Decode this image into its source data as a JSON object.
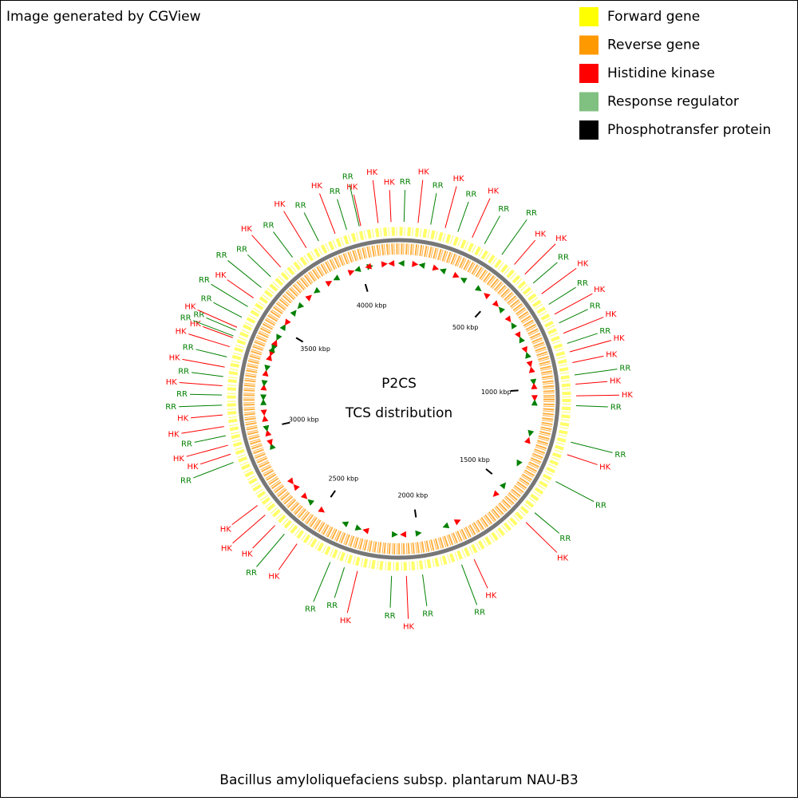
{
  "header": "Image generated by CGView",
  "legend": [
    {
      "label": "Forward gene",
      "color": "#ffff00"
    },
    {
      "label": "Reverse gene",
      "color": "#ff9900"
    },
    {
      "label": "Histidine kinase",
      "color": "#ff0000"
    },
    {
      "label": "Response regulator",
      "color": "#80c080"
    },
    {
      "label": "Phosphotransfer protein",
      "color": "#000000"
    }
  ],
  "map": {
    "title": "P2CS",
    "subtitle": "TCS distribution",
    "xlim": [
      0,
      4190
    ],
    "ticks": [
      {
        "value": 500,
        "label": "500 kbp"
      },
      {
        "value": 1000,
        "label": "1000 kbp"
      },
      {
        "value": 1500,
        "label": "1500 kbp"
      },
      {
        "value": 2000,
        "label": "2000 kbp"
      },
      {
        "value": 2500,
        "label": "2500 kbp"
      },
      {
        "value": 3000,
        "label": "3000 kbp"
      },
      {
        "value": 3500,
        "label": "3500 kbp"
      },
      {
        "value": 4000,
        "label": "4000 kbp"
      }
    ],
    "label_colors": {
      "HK": "#ff0000",
      "RR": "#008000"
    },
    "features": [
      {
        "label": "RR",
        "position": 19
      },
      {
        "label": "HK",
        "position": 72
      },
      {
        "label": "RR",
        "position": 120
      },
      {
        "label": "HK",
        "position": 176
      },
      {
        "label": "RR",
        "position": 226
      },
      {
        "label": "HK",
        "position": 284
      },
      {
        "label": "RR",
        "position": 336
      },
      {
        "label": "RR",
        "position": 413
      },
      {
        "label": "HK",
        "position": 473
      },
      {
        "label": "HK",
        "position": 527
      },
      {
        "label": "RR",
        "position": 573
      },
      {
        "label": "HK",
        "position": 624
      },
      {
        "label": "RR",
        "position": 672
      },
      {
        "label": "HK",
        "position": 715
      },
      {
        "label": "RR",
        "position": 752
      },
      {
        "label": "HK",
        "position": 794
      },
      {
        "label": "RR",
        "position": 835
      },
      {
        "label": "HK",
        "position": 868
      },
      {
        "label": "HK",
        "position": 910
      },
      {
        "label": "RR",
        "position": 957
      },
      {
        "label": "HK",
        "position": 992
      },
      {
        "label": "HK",
        "position": 1036
      },
      {
        "label": "RR",
        "position": 1073
      },
      {
        "label": "RR",
        "position": 1212
      },
      {
        "label": "HK",
        "position": 1261
      },
      {
        "label": "RR",
        "position": 1371
      },
      {
        "label": "RR",
        "position": 1513
      },
      {
        "label": "HK",
        "position": 1562
      },
      {
        "label": "HK",
        "position": 1803
      },
      {
        "label": "RR",
        "position": 1854
      },
      {
        "label": "RR",
        "position": 2006
      },
      {
        "label": "HK",
        "position": 2067
      },
      {
        "label": "RR",
        "position": 2123
      },
      {
        "label": "HK",
        "position": 2253
      },
      {
        "label": "RR",
        "position": 2304
      },
      {
        "label": "RR",
        "position": 2361
      },
      {
        "label": "HK",
        "position": 2504
      },
      {
        "label": "RR",
        "position": 2564
      },
      {
        "label": "HK",
        "position": 2612
      },
      {
        "label": "HK",
        "position": 2666
      },
      {
        "label": "HK",
        "position": 2712
      },
      {
        "label": "RR",
        "position": 2898
      },
      {
        "label": "HK",
        "position": 2931
      },
      {
        "label": "HK",
        "position": 2966
      },
      {
        "label": "RR",
        "position": 3003
      },
      {
        "label": "HK",
        "position": 3038
      },
      {
        "label": "HK",
        "position": 3082
      },
      {
        "label": "RR",
        "position": 3119
      },
      {
        "label": "RR",
        "position": 3157
      },
      {
        "label": "HK",
        "position": 3192
      },
      {
        "label": "RR",
        "position": 3227
      },
      {
        "label": "HK",
        "position": 3263
      },
      {
        "label": "RR",
        "position": 3302
      },
      {
        "label": "HK",
        "position": 3342
      },
      {
        "label": "HK",
        "position": 3378
      },
      {
        "label": "RR",
        "position": 3385
      },
      {
        "label": "RR",
        "position": 3408
      },
      {
        "label": "HK",
        "position": 3420
      },
      {
        "label": "RR",
        "position": 3462
      },
      {
        "label": "RR",
        "position": 3508
      },
      {
        "label": "HK",
        "position": 3547
      },
      {
        "label": "RR",
        "position": 3596
      },
      {
        "label": "RR",
        "position": 3650
      },
      {
        "label": "HK",
        "position": 3702
      },
      {
        "label": "RR",
        "position": 3760
      },
      {
        "label": "HK",
        "position": 3823
      },
      {
        "label": "RR",
        "position": 3876
      },
      {
        "label": "HK",
        "position": 3944
      },
      {
        "label": "RR",
        "position": 3990
      },
      {
        "label": "RR",
        "position": 4039
      },
      {
        "label": "HK",
        "position": 4045
      },
      {
        "label": "HK",
        "position": 4111
      },
      {
        "label": "HK",
        "position": 4160
      }
    ]
  },
  "footer": "Bacillus amyloliquefaciens subsp. plantarum NAU-B3"
}
